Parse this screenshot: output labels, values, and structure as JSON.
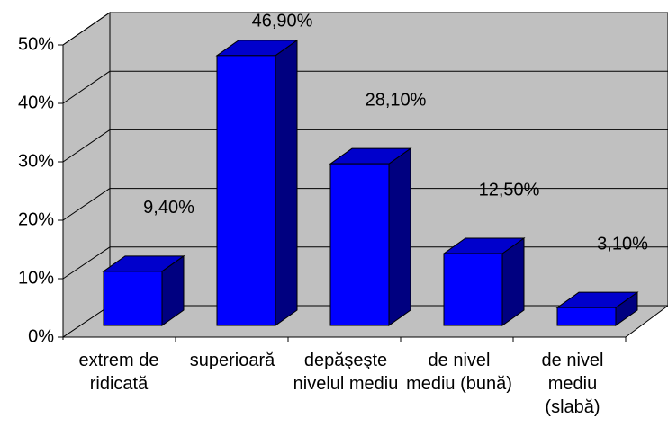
{
  "chart_data": {
    "type": "bar3d",
    "categories": [
      "extrem de ridicată",
      "superioară",
      "depăşeşte nivelul mediu",
      "de nivel mediu (bună)",
      "de nivel mediu (slabă)"
    ],
    "values": [
      9.4,
      46.9,
      28.1,
      12.5,
      3.1
    ],
    "value_labels": [
      "9,40%",
      "46,90%",
      "28,10%",
      "12,50%",
      "3,10%"
    ],
    "color": "#0000ff",
    "ylim": [
      0,
      50
    ],
    "yticks": [
      {
        "value": 0,
        "label": "0%"
      },
      {
        "value": 10,
        "label": "10%"
      },
      {
        "value": 20,
        "label": "20%"
      },
      {
        "value": 30,
        "label": "30%"
      },
      {
        "value": 40,
        "label": "40%"
      },
      {
        "value": 50,
        "label": "50%"
      }
    ],
    "grid": true
  }
}
